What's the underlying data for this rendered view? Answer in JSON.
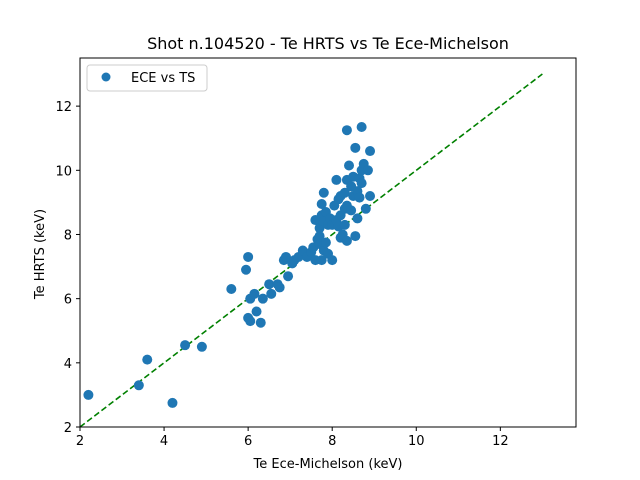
{
  "chart_data": {
    "type": "scatter",
    "title": "Shot n.104520 - Te HRTS vs Te Ece-Michelson",
    "xlabel": "Te Ece-Michelson (keV)",
    "ylabel": "Te HRTS (keV)",
    "xlim": [
      2.0,
      13.8
    ],
    "ylim": [
      2.0,
      13.5
    ],
    "xticks": [
      "2",
      "4",
      "6",
      "8",
      "10",
      "12"
    ],
    "yticks": [
      "2",
      "4",
      "6",
      "8",
      "10",
      "12"
    ],
    "grid": false,
    "legend": "top-left",
    "series": [
      {
        "name": "ECE vs TS",
        "color": "#1f77b4",
        "marker": "circle",
        "points": [
          [
            2.2,
            3.0
          ],
          [
            3.4,
            3.3
          ],
          [
            3.6,
            4.1
          ],
          [
            4.2,
            2.75
          ],
          [
            4.5,
            4.55
          ],
          [
            4.9,
            4.5
          ],
          [
            5.6,
            6.3
          ],
          [
            5.95,
            6.9
          ],
          [
            6.0,
            7.3
          ],
          [
            6.0,
            5.4
          ],
          [
            6.05,
            5.3
          ],
          [
            6.05,
            6.0
          ],
          [
            6.15,
            6.15
          ],
          [
            6.2,
            5.6
          ],
          [
            6.3,
            5.25
          ],
          [
            6.35,
            6.0
          ],
          [
            6.5,
            6.45
          ],
          [
            6.55,
            6.15
          ],
          [
            6.7,
            6.45
          ],
          [
            6.75,
            6.35
          ],
          [
            6.85,
            7.2
          ],
          [
            6.9,
            7.3
          ],
          [
            6.95,
            6.7
          ],
          [
            7.05,
            7.1
          ],
          [
            7.1,
            7.2
          ],
          [
            7.2,
            7.3
          ],
          [
            7.3,
            7.5
          ],
          [
            7.4,
            7.3
          ],
          [
            7.5,
            7.45
          ],
          [
            7.55,
            7.6
          ],
          [
            7.6,
            7.2
          ],
          [
            7.6,
            8.45
          ],
          [
            7.65,
            7.85
          ],
          [
            7.7,
            7.95
          ],
          [
            7.7,
            7.7
          ],
          [
            7.7,
            8.2
          ],
          [
            7.75,
            7.2
          ],
          [
            7.75,
            8.6
          ],
          [
            7.75,
            8.95
          ],
          [
            7.8,
            7.5
          ],
          [
            7.8,
            8.4
          ],
          [
            7.8,
            9.3
          ],
          [
            7.85,
            7.75
          ],
          [
            7.85,
            8.7
          ],
          [
            7.9,
            7.4
          ],
          [
            7.9,
            8.3
          ],
          [
            7.95,
            8.5
          ],
          [
            8.0,
            7.2
          ],
          [
            8.0,
            8.3
          ],
          [
            8.05,
            8.9
          ],
          [
            8.1,
            8.45
          ],
          [
            8.1,
            9.7
          ],
          [
            8.15,
            8.25
          ],
          [
            8.15,
            9.1
          ],
          [
            8.2,
            7.9
          ],
          [
            8.2,
            8.6
          ],
          [
            8.2,
            9.2
          ],
          [
            8.25,
            8.0
          ],
          [
            8.3,
            8.3
          ],
          [
            8.3,
            8.8
          ],
          [
            8.3,
            9.3
          ],
          [
            8.35,
            7.8
          ],
          [
            8.35,
            8.9
          ],
          [
            8.35,
            9.7
          ],
          [
            8.35,
            11.25
          ],
          [
            8.4,
            10.15
          ],
          [
            8.45,
            8.75
          ],
          [
            8.45,
            9.5
          ],
          [
            8.5,
            9.2
          ],
          [
            8.5,
            9.8
          ],
          [
            8.55,
            7.95
          ],
          [
            8.55,
            10.7
          ],
          [
            8.6,
            9.35
          ],
          [
            8.6,
            8.5
          ],
          [
            8.65,
            9.15
          ],
          [
            8.65,
            9.75
          ],
          [
            8.7,
            9.6
          ],
          [
            8.7,
            10.0
          ],
          [
            8.7,
            11.35
          ],
          [
            8.75,
            10.2
          ],
          [
            8.8,
            8.8
          ],
          [
            8.85,
            10.0
          ],
          [
            8.9,
            10.6
          ],
          [
            8.9,
            9.2
          ]
        ]
      }
    ],
    "reference_line": {
      "style": "dashed",
      "color": "#008000",
      "from": [
        2.0,
        2.0
      ],
      "to": [
        13.0,
        13.0
      ]
    }
  }
}
